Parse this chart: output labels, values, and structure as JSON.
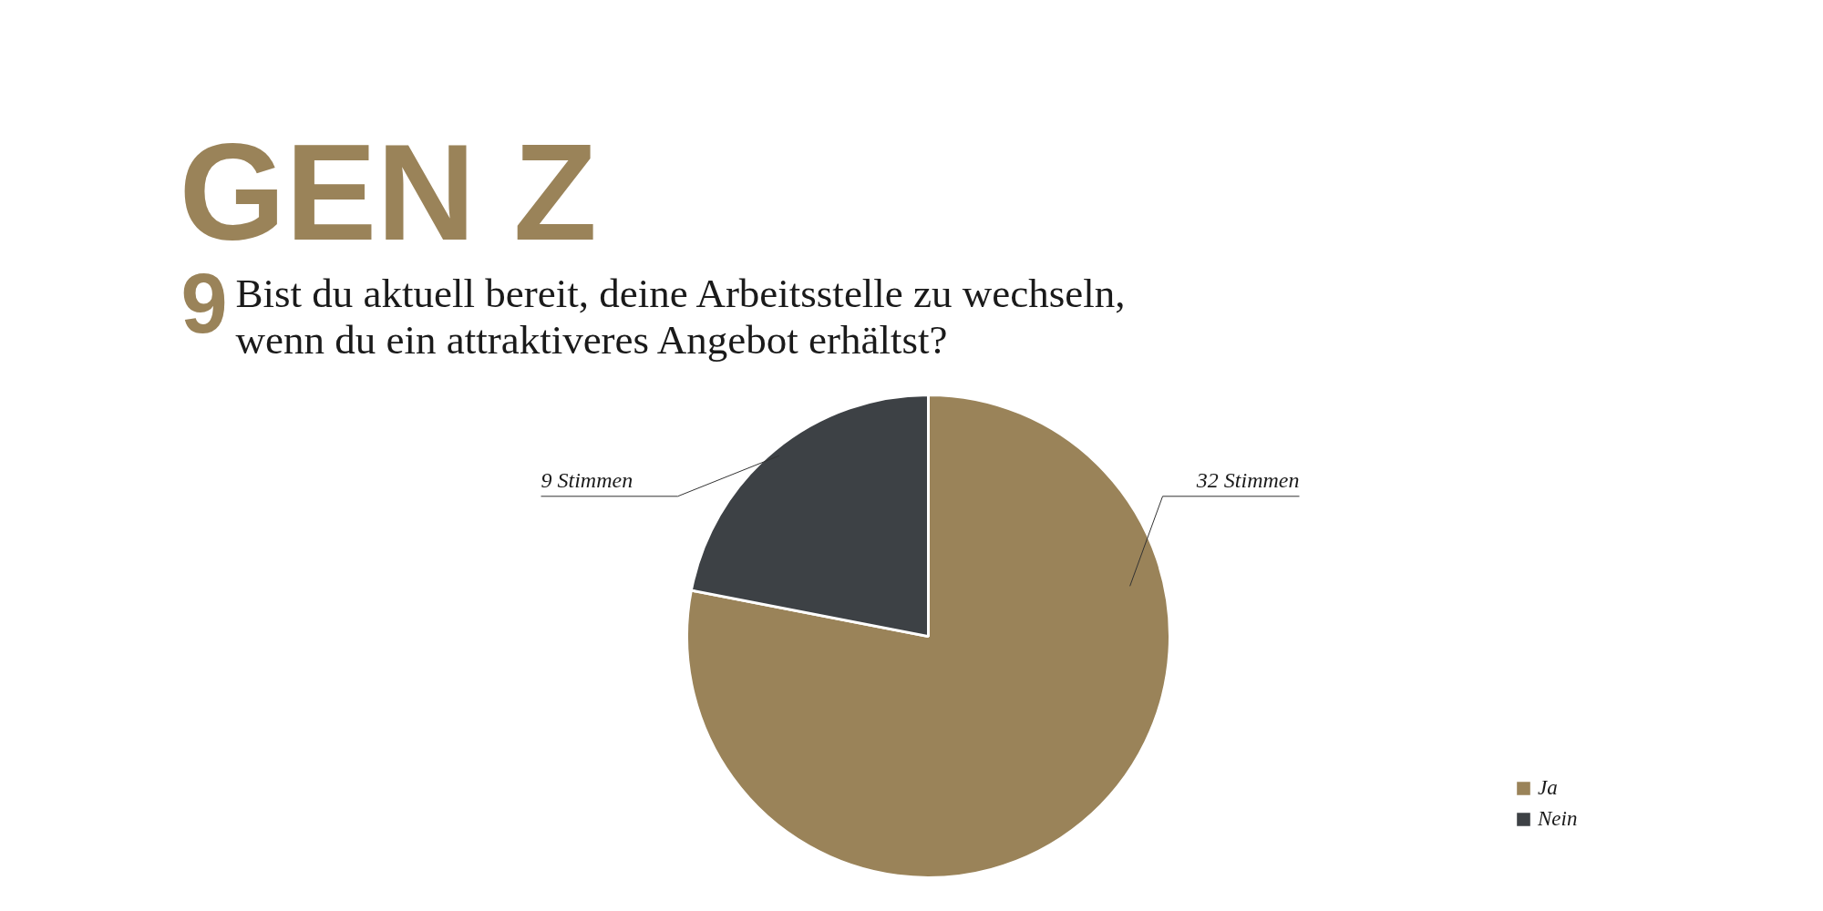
{
  "chart_data": {
    "type": "pie",
    "title": "GEN Z",
    "subtitle": "Bist du aktuell bereit, deine Arbeitsstelle zu wechseln,\nwenn du ein attraktiveres Angebot erhältst?",
    "annotations": [
      "9"
    ],
    "categories": [
      "Ja",
      "Nein"
    ],
    "values": [
      32,
      9
    ],
    "colors": [
      "#9a8359",
      "#3d4145"
    ],
    "value_labels": [
      "32 Stimmen",
      "9 Stimmen"
    ],
    "legend": "bottom right"
  }
}
